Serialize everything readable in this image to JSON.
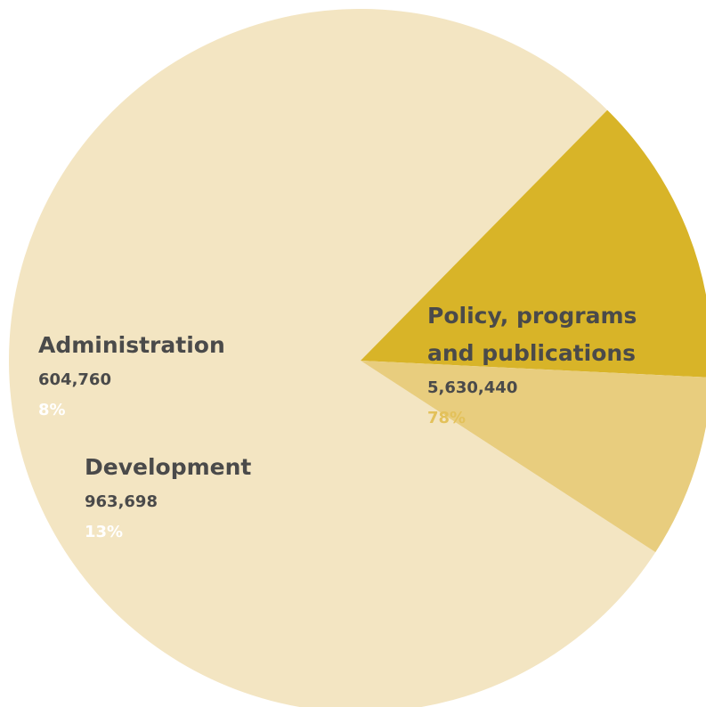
{
  "chart_data": {
    "type": "pie",
    "title": "",
    "slices": [
      {
        "name_lines": [
          "Policy, programs",
          "and publications"
        ],
        "value": 5630440,
        "value_label": "5,630,440",
        "percent": 78,
        "percent_label": "78%",
        "color": "#f3e5c2",
        "percent_color": "#e3c15a"
      },
      {
        "name_lines": [
          "Development"
        ],
        "value": 963698,
        "value_label": "963,698",
        "percent": 13,
        "percent_label": "13%",
        "color": "#d8b428",
        "percent_color": "#ffffff"
      },
      {
        "name_lines": [
          "Administration"
        ],
        "value": 604760,
        "value_label": "604,760",
        "percent": 8,
        "percent_label": "8%",
        "color": "#e8cd7e",
        "percent_color": "#ffffff"
      }
    ],
    "legend": "none",
    "labels": "inside"
  }
}
